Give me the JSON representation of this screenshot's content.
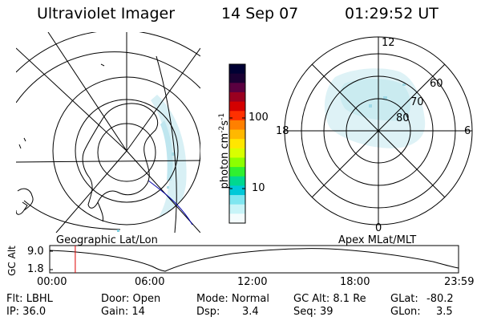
{
  "header": {
    "title": "Ultraviolet Imager",
    "date": "14 Sep 07",
    "time": "01:29:52 UT"
  },
  "colorbar": {
    "unit_label": "photon cm",
    "unit_exp1": "-2",
    "unit_mid": "s",
    "unit_exp2": "-1",
    "ticks": [
      {
        "value": 100,
        "label": "100"
      },
      {
        "value": 10,
        "label": "10"
      }
    ],
    "colors": [
      "#000033",
      "#1a0033",
      "#5a0040",
      "#9a0020",
      "#d40000",
      "#ff3000",
      "#ff8000",
      "#ffb800",
      "#ffe600",
      "#d8ff00",
      "#8cff00",
      "#30f030",
      "#00d890",
      "#00c8d8",
      "#7fe6f0",
      "#c8f4f8",
      "#f4fcfd"
    ]
  },
  "left_panel": {
    "caption": "Geographic Lat/Lon"
  },
  "right_panel": {
    "caption": "Apex MLat/MLT",
    "mlt_labels": {
      "top": "12",
      "left": "18",
      "right": "6",
      "bottom": "0"
    },
    "lat_labels": [
      "60",
      "70",
      "80"
    ]
  },
  "altitude_plot": {
    "ylabel": "GC Alt",
    "ytick_high": "9.0",
    "ytick_low": "1.8",
    "xticks": [
      "00:00",
      "06:00",
      "12:00",
      "18:00",
      "23:59"
    ],
    "current_time_marker_hours": 1.5
  },
  "info": {
    "filter": "Flt: LBHL",
    "ip": "IP: 36.0",
    "door": "Door: Open",
    "gain": "Gain: 14",
    "mode": "Mode: Normal",
    "dsp_label": "Dsp:",
    "dsp_value": "3.4",
    "gc_alt": "GC Alt: 8.1 Re",
    "seq": "Seq: 39",
    "glat_label": "GLat:",
    "glat_value": "-80.2",
    "glon_label": "GLon:",
    "glon_value": "3.5"
  }
}
